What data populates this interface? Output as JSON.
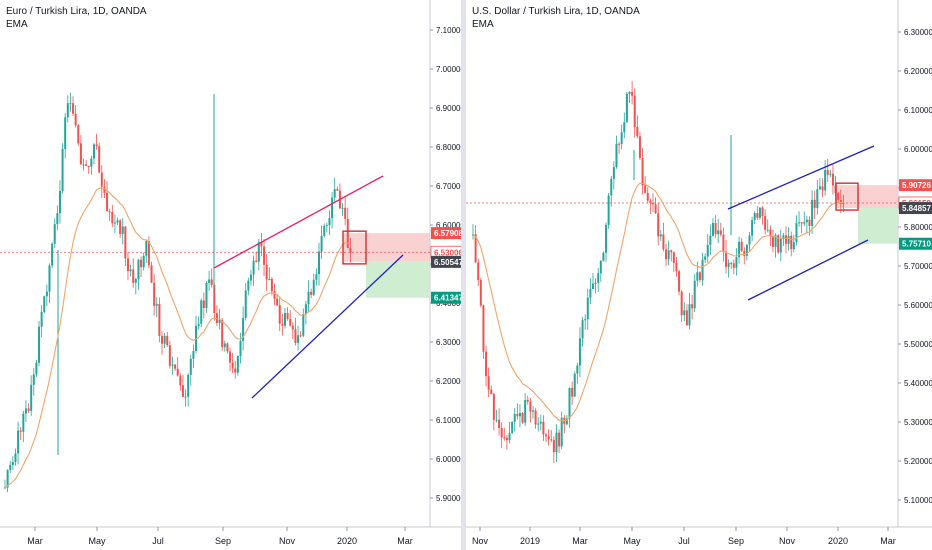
{
  "colors": {
    "up": "#26a69a",
    "down": "#ef5350",
    "ema": "#f0a56b",
    "trend_red": "#e91e63",
    "trend_blue": "#1e1ec8",
    "stop_zone": "#f7c6c6",
    "target_zone": "#c9ebcc",
    "price_line": "#ef5350",
    "axis": "#131722",
    "grid": "#e0e3eb"
  },
  "charts": [
    {
      "title": "Euro / Turkish Lira, 1D, OANDA",
      "indicator": "EMA",
      "y_ticks": [
        "7.10000",
        "7.00000",
        "6.90000",
        "6.80000",
        "6.70000",
        "6.60000",
        "6.50000",
        "6.40000",
        "6.30000",
        "6.20000",
        "6.10000",
        "6.00000",
        "5.90000"
      ],
      "x_ticks": [
        "Mar",
        "May",
        "Jul",
        "Sep",
        "Nov",
        "2020",
        "Mar"
      ],
      "price_tags": [
        {
          "value": "6.57908",
          "color": "#ef5350",
          "text_color": "#ffffff"
        },
        {
          "value": "6.53006",
          "color": "#ffffff",
          "text_color": "#ef5350"
        },
        {
          "value": "6.50547",
          "color": "#434651",
          "text_color": "#ffffff"
        },
        {
          "value": "6.41347",
          "color": "#089981",
          "text_color": "#ffffff"
        }
      ]
    },
    {
      "title": "U.S. Dollar / Turkish Lira, 1D, OANDA",
      "indicator": "EMA",
      "y_ticks": [
        "6.30000",
        "6.20000",
        "6.10000",
        "6.00000",
        "5.90000",
        "5.80000",
        "5.70000",
        "5.60000",
        "5.50000",
        "5.40000",
        "5.30000",
        "5.20000",
        "5.10000"
      ],
      "x_ticks": [
        "Nov",
        "2019",
        "Mar",
        "May",
        "Jul",
        "Sep",
        "Nov",
        "2020",
        "Mar"
      ],
      "price_tags": [
        {
          "value": "5.90726",
          "color": "#ef5350",
          "text_color": "#ffffff"
        },
        {
          "value": "5.86158",
          "color": "#ffffff",
          "text_color": "#ef5350"
        },
        {
          "value": "5.84857",
          "color": "#434651",
          "text_color": "#ffffff"
        },
        {
          "value": "5.75710",
          "color": "#089981",
          "text_color": "#ffffff"
        }
      ]
    }
  ],
  "chart_data": [
    {
      "type": "candlestick",
      "title": "Euro / Turkish Lira, 1D, OANDA",
      "indicator": "EMA",
      "ylim": [
        5.85,
        7.15
      ],
      "x_labels": [
        "Mar",
        "May",
        "Jul",
        "Sep",
        "Nov",
        "2020",
        "Mar"
      ],
      "close_path": [
        [
          "Feb",
          5.95
        ],
        [
          "Mar",
          6.05
        ],
        [
          "Mar",
          6.15
        ],
        [
          "Apr",
          6.4
        ],
        [
          "Apr",
          6.6
        ],
        [
          "May",
          6.95
        ],
        [
          "May",
          6.75
        ],
        [
          "May",
          6.8
        ],
        [
          "Jun",
          6.65
        ],
        [
          "Jun",
          6.6
        ],
        [
          "Jul",
          6.45
        ],
        [
          "Jul",
          6.55
        ],
        [
          "Jul",
          6.35
        ],
        [
          "Aug",
          6.25
        ],
        [
          "Aug",
          6.15
        ],
        [
          "Aug",
          6.35
        ],
        [
          "Sep",
          6.45
        ],
        [
          "Sep",
          6.3
        ],
        [
          "Sep",
          6.2
        ],
        [
          "Oct",
          6.45
        ],
        [
          "Oct",
          6.55
        ],
        [
          "Oct",
          6.4
        ],
        [
          "Nov",
          6.35
        ],
        [
          "Nov",
          6.3
        ],
        [
          "Dec",
          6.45
        ],
        [
          "Dec",
          6.6
        ],
        [
          "Dec",
          6.69
        ],
        [
          "2020",
          6.53
        ]
      ],
      "last_close": 6.53006,
      "stop_loss": 6.57908,
      "entry": 6.50547,
      "take_profit": 6.41347
    },
    {
      "type": "candlestick",
      "title": "U.S. Dollar / Turkish Lira, 1D, OANDA",
      "indicator": "EMA",
      "ylim": [
        5.05,
        6.35
      ],
      "x_labels": [
        "Nov",
        "2019",
        "Mar",
        "May",
        "Jul",
        "Sep",
        "Nov",
        "2020",
        "Mar"
      ],
      "close_path": [
        [
          "Oct",
          5.8
        ],
        [
          "Nov",
          5.4
        ],
        [
          "Nov",
          5.25
        ],
        [
          "Dec",
          5.3
        ],
        [
          "2019",
          5.35
        ],
        [
          "Jan",
          5.25
        ],
        [
          "Feb",
          5.25
        ],
        [
          "Mar",
          5.4
        ],
        [
          "Mar",
          5.6
        ],
        [
          "Apr",
          5.7
        ],
        [
          "May",
          6.0
        ],
        [
          "May",
          6.15
        ],
        [
          "Jun",
          5.9
        ],
        [
          "Jun",
          5.8
        ],
        [
          "Jul",
          5.7
        ],
        [
          "Jul",
          5.55
        ],
        [
          "Aug",
          5.7
        ],
        [
          "Aug",
          5.8
        ],
        [
          "Sep",
          5.7
        ],
        [
          "Sep",
          5.75
        ],
        [
          "Oct",
          5.85
        ],
        [
          "Oct",
          5.75
        ],
        [
          "Nov",
          5.75
        ],
        [
          "Nov",
          5.8
        ],
        [
          "Dec",
          5.85
        ],
        [
          "Dec",
          5.95
        ],
        [
          "2020",
          5.86
        ]
      ],
      "last_close": 5.86158,
      "stop_loss": 5.90726,
      "entry": 5.84857,
      "take_profit": 5.7571
    }
  ]
}
